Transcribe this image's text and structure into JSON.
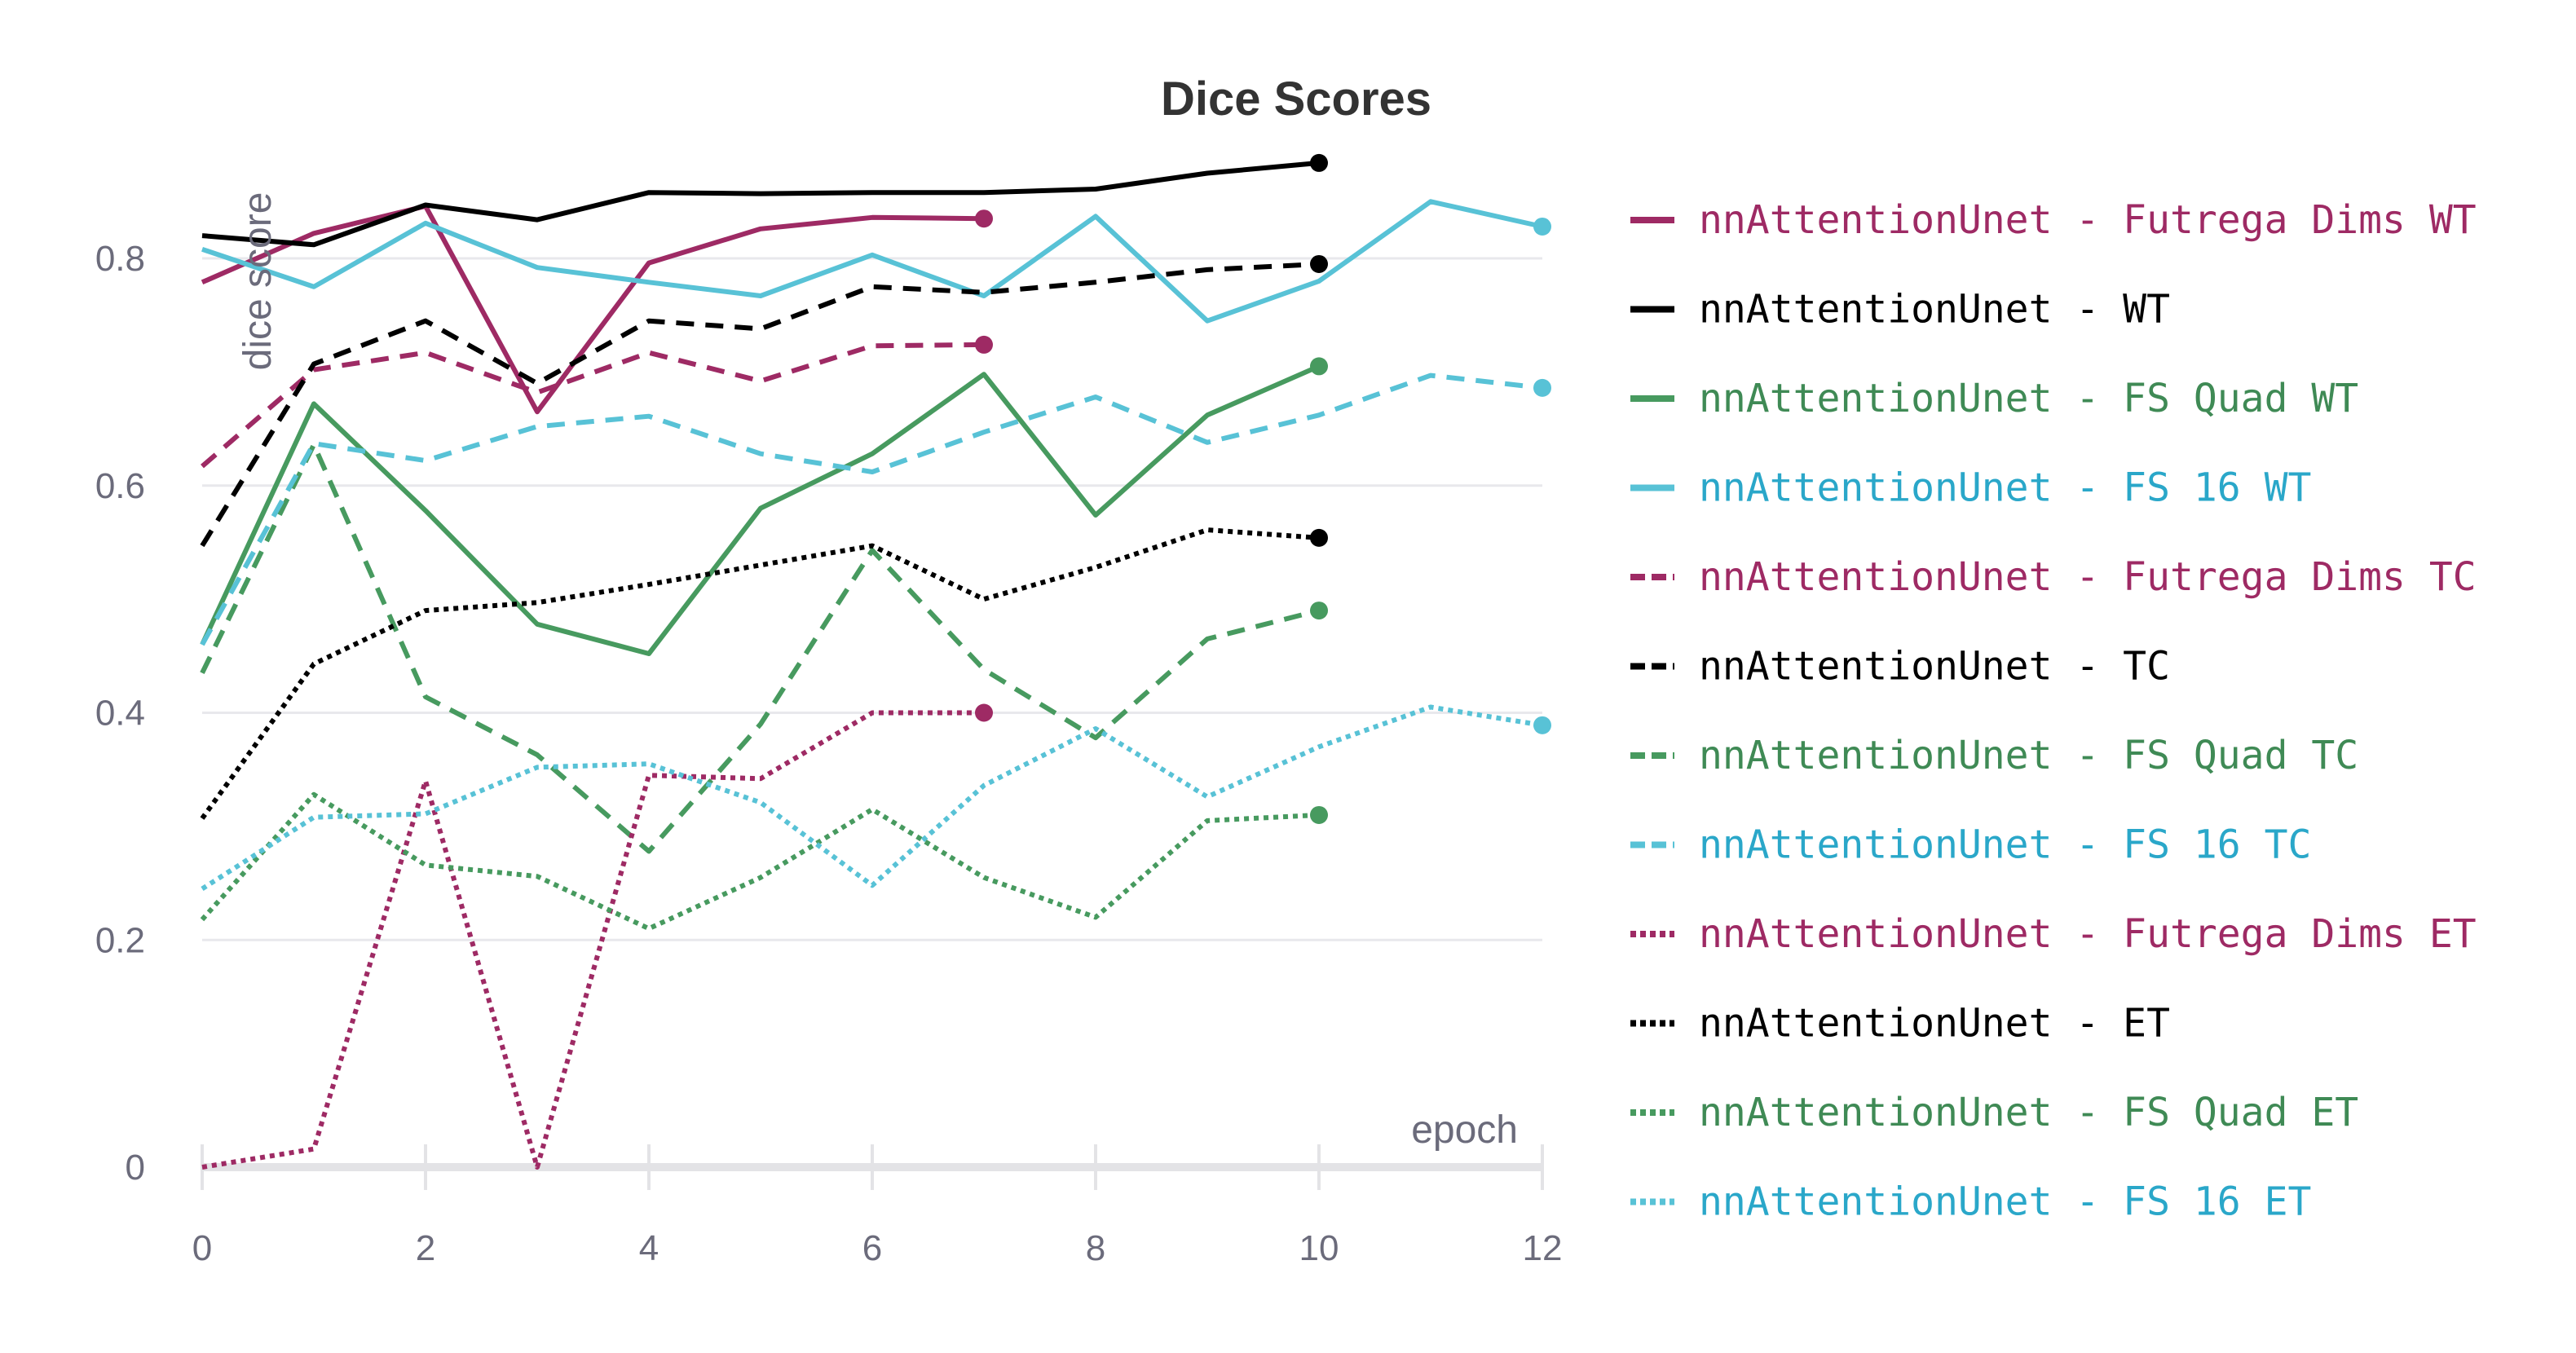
{
  "chart_data": {
    "type": "line",
    "title": "Dice Scores",
    "xlabel": "epoch",
    "ylabel": "dice score",
    "xlim": [
      0,
      12
    ],
    "ylim": [
      0,
      0.9
    ],
    "x_ticks": [
      0,
      2,
      4,
      6,
      8,
      10,
      12
    ],
    "y_ticks": [
      0,
      0.2,
      0.4,
      0.6,
      0.8
    ],
    "y_tick_labels": [
      "0",
      "0.2",
      "0.4",
      "0.6",
      "0.8"
    ],
    "grid": true,
    "legend_position": "right",
    "series": [
      {
        "name": "nnAttentionUnet - Futrega Dims WT",
        "color": "#9e2a64",
        "dash": "solid",
        "x": [
          0,
          1,
          2,
          3,
          4,
          5,
          6,
          7
        ],
        "y": [
          0.779,
          0.822,
          0.846,
          0.665,
          0.796,
          0.826,
          0.836,
          0.835
        ]
      },
      {
        "name": "nnAttentionUnet - WT",
        "color": "#000000",
        "dash": "solid",
        "x": [
          0,
          1,
          2,
          3,
          4,
          5,
          6,
          7,
          8,
          9,
          10
        ],
        "y": [
          0.82,
          0.812,
          0.847,
          0.834,
          0.858,
          0.857,
          0.858,
          0.858,
          0.861,
          0.875,
          0.884
        ]
      },
      {
        "name": "nnAttentionUnet - FS Quad WT",
        "color": "#479a5f",
        "dash": "solid",
        "x": [
          0,
          1,
          2,
          3,
          4,
          5,
          6,
          7,
          8,
          9,
          10
        ],
        "y": [
          0.46,
          0.672,
          0.578,
          0.478,
          0.452,
          0.58,
          0.628,
          0.698,
          0.574,
          0.662,
          0.705
        ]
      },
      {
        "name": "nnAttentionUnet - FS 16 WT",
        "color": "#58c2d6",
        "dash": "solid",
        "x": [
          0,
          1,
          2,
          3,
          4,
          5,
          6,
          7,
          8,
          9,
          10,
          11,
          12
        ],
        "y": [
          0.808,
          0.775,
          0.831,
          0.792,
          0.779,
          0.767,
          0.803,
          0.767,
          0.837,
          0.745,
          0.78,
          0.85,
          0.828
        ]
      },
      {
        "name": "nnAttentionUnet - Futrega Dims TC",
        "color": "#9e2a64",
        "dash": "dashed",
        "x": [
          0,
          1,
          2,
          3,
          4,
          5,
          6,
          7
        ],
        "y": [
          0.617,
          0.702,
          0.717,
          0.682,
          0.717,
          0.692,
          0.723,
          0.724
        ]
      },
      {
        "name": "nnAttentionUnet - TC",
        "color": "#000000",
        "dash": "dashed",
        "x": [
          0,
          1,
          2,
          3,
          4,
          5,
          6,
          7,
          8,
          9,
          10
        ],
        "y": [
          0.547,
          0.707,
          0.745,
          0.69,
          0.745,
          0.738,
          0.775,
          0.77,
          0.779,
          0.79,
          0.795
        ]
      },
      {
        "name": "nnAttentionUnet - FS Quad TC",
        "color": "#479a5f",
        "dash": "dashed",
        "x": [
          0,
          1,
          2,
          3,
          4,
          5,
          6,
          7,
          8,
          9,
          10
        ],
        "y": [
          0.435,
          0.636,
          0.414,
          0.363,
          0.278,
          0.39,
          0.543,
          0.438,
          0.378,
          0.465,
          0.49
        ]
      },
      {
        "name": "nnAttentionUnet - FS 16 TC",
        "color": "#58c2d6",
        "dash": "dashed",
        "x": [
          0,
          1,
          2,
          3,
          4,
          5,
          6,
          7,
          8,
          9,
          10,
          11,
          12
        ],
        "y": [
          0.46,
          0.637,
          0.622,
          0.652,
          0.661,
          0.628,
          0.612,
          0.647,
          0.678,
          0.638,
          0.662,
          0.697,
          0.686
        ]
      },
      {
        "name": "nnAttentionUnet - Futrega Dims ET",
        "color": "#9e2a64",
        "dash": "dotted",
        "x": [
          0,
          1,
          2,
          3,
          4,
          5,
          6,
          7
        ],
        "y": [
          0.0,
          0.016,
          0.34,
          0.0,
          0.345,
          0.342,
          0.4,
          0.4
        ]
      },
      {
        "name": "nnAttentionUnet - ET",
        "color": "#000000",
        "dash": "dotted",
        "x": [
          0,
          1,
          2,
          3,
          4,
          5,
          6,
          7,
          8,
          9,
          10
        ],
        "y": [
          0.307,
          0.443,
          0.49,
          0.497,
          0.513,
          0.53,
          0.547,
          0.5,
          0.528,
          0.561,
          0.554
        ]
      },
      {
        "name": "nnAttentionUnet - FS Quad ET",
        "color": "#479a5f",
        "dash": "dotted",
        "x": [
          0,
          1,
          2,
          3,
          4,
          5,
          6,
          7,
          8,
          9,
          10
        ],
        "y": [
          0.218,
          0.328,
          0.266,
          0.256,
          0.21,
          0.255,
          0.315,
          0.255,
          0.22,
          0.305,
          0.31
        ]
      },
      {
        "name": "nnAttentionUnet - FS 16 ET",
        "color": "#58c2d6",
        "dash": "dotted",
        "x": [
          0,
          1,
          2,
          3,
          4,
          5,
          6,
          7,
          8,
          9,
          10,
          11,
          12
        ],
        "y": [
          0.245,
          0.308,
          0.311,
          0.352,
          0.355,
          0.321,
          0.248,
          0.336,
          0.386,
          0.326,
          0.37,
          0.405,
          0.389
        ]
      }
    ]
  }
}
